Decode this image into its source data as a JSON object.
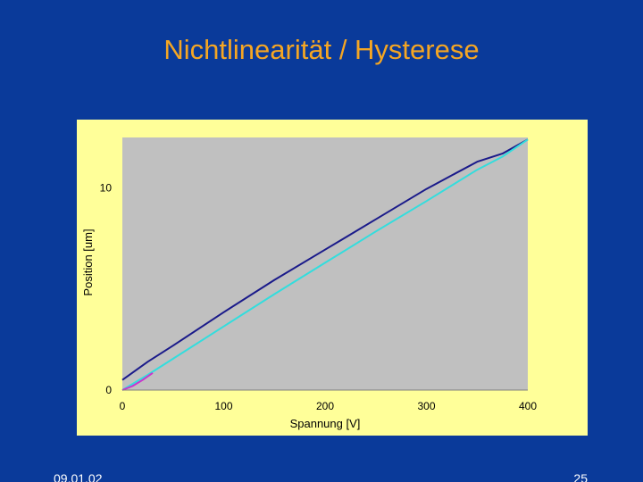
{
  "slide": {
    "title": "Nichtlinearität / Hysterese",
    "date": "09.01.02",
    "page_number": "25"
  },
  "colors": {
    "background": "#0a3a9a",
    "title": "#f5a623",
    "chart_area": "#ffff99",
    "plot_area": "#c0c0c0",
    "series_up": "#33dddd",
    "series_down": "#1a1a8a",
    "series_start": "#cc33cc"
  },
  "chart_data": {
    "type": "line",
    "title": "",
    "xlabel": "Spannung [V]",
    "ylabel": "Position [um]",
    "xlim": [
      0,
      400
    ],
    "ylim": [
      0,
      12.5
    ],
    "x_ticks": [
      "0",
      "100",
      "200",
      "300",
      "400"
    ],
    "y_ticks": [
      "0",
      "10"
    ],
    "x_tick_values": [
      0,
      100,
      200,
      300,
      400
    ],
    "y_tick_values": [
      0,
      10
    ],
    "grid": false,
    "legend": "none",
    "series": [
      {
        "color": "#1a1a8a",
        "x": [
          0,
          25,
          50,
          100,
          150,
          200,
          250,
          300,
          350,
          375,
          400
        ],
        "y": [
          0.5,
          1.4,
          2.2,
          3.85,
          5.45,
          6.95,
          8.45,
          9.95,
          11.3,
          11.7,
          12.4
        ]
      },
      {
        "color": "#33dddd",
        "x": [
          0,
          25,
          50,
          100,
          150,
          200,
          250,
          300,
          350,
          375,
          400
        ],
        "y": [
          0.0,
          0.75,
          1.55,
          3.15,
          4.75,
          6.3,
          7.85,
          9.35,
          10.9,
          11.55,
          12.4
        ]
      },
      {
        "color": "#cc33cc",
        "x": [
          0,
          10,
          20,
          30
        ],
        "y": [
          0.0,
          0.2,
          0.5,
          0.85
        ]
      }
    ]
  }
}
